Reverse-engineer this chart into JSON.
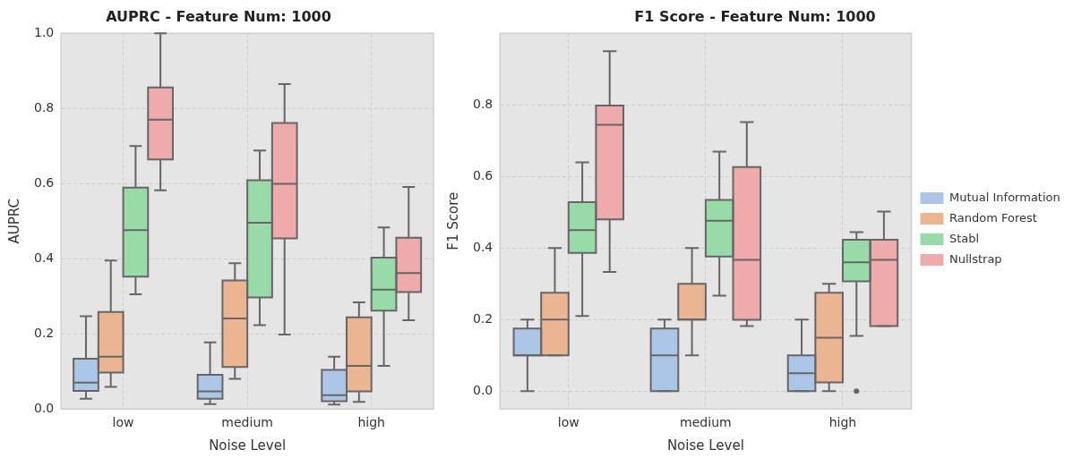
{
  "chart_data": [
    {
      "type": "box",
      "title": "AUPRC - Feature Num: 1000",
      "xlabel": "Noise Level",
      "ylabel": "AUPRC",
      "categories": [
        "low",
        "medium",
        "high"
      ],
      "ylim": [
        0,
        1
      ],
      "yticks": [
        {
          "value": 0,
          "label": "0.0"
        },
        {
          "value": 0.2,
          "label": "0.2"
        },
        {
          "value": 0.4,
          "label": "0.4"
        },
        {
          "value": 0.6,
          "label": "0.6"
        },
        {
          "value": 0.8,
          "label": "0.8"
        },
        {
          "value": 1,
          "label": "1.0"
        }
      ],
      "grid": true,
      "legend": false,
      "series": [
        {
          "color": "#abc6e6",
          "boxes": [
            {
              "low": 0.027,
              "q1": 0.048,
              "median": 0.07,
              "q3": 0.134,
              "high": 0.247
            },
            {
              "low": 0.013,
              "q1": 0.027,
              "median": 0.047,
              "q3": 0.091,
              "high": 0.177
            },
            {
              "low": 0.012,
              "q1": 0.021,
              "median": 0.037,
              "q3": 0.104,
              "high": 0.139
            }
          ]
        },
        {
          "color": "#ecb591",
          "boxes": [
            {
              "low": 0.059,
              "q1": 0.097,
              "median": 0.139,
              "q3": 0.258,
              "high": 0.395
            },
            {
              "low": 0.08,
              "q1": 0.112,
              "median": 0.241,
              "q3": 0.342,
              "high": 0.388
            },
            {
              "low": 0.019,
              "q1": 0.047,
              "median": 0.115,
              "q3": 0.244,
              "high": 0.284
            }
          ]
        },
        {
          "color": "#98dba8",
          "boxes": [
            {
              "low": 0.305,
              "q1": 0.352,
              "median": 0.476,
              "q3": 0.589,
              "high": 0.7
            },
            {
              "low": 0.223,
              "q1": 0.297,
              "median": 0.496,
              "q3": 0.609,
              "high": 0.688
            },
            {
              "low": 0.115,
              "q1": 0.262,
              "median": 0.318,
              "q3": 0.403,
              "high": 0.483
            }
          ]
        },
        {
          "color": "#efabab",
          "boxes": [
            {
              "low": 0.582,
              "q1": 0.664,
              "median": 0.77,
              "q3": 0.856,
              "high": 1.0
            },
            {
              "low": 0.198,
              "q1": 0.454,
              "median": 0.599,
              "q3": 0.761,
              "high": 0.865
            },
            {
              "low": 0.236,
              "q1": 0.311,
              "median": 0.362,
              "q3": 0.456,
              "high": 0.591
            }
          ]
        }
      ]
    },
    {
      "type": "box",
      "title": "F1 Score - Feature Num: 1000",
      "xlabel": "Noise Level",
      "ylabel": "F1 Score",
      "categories": [
        "low",
        "medium",
        "high"
      ],
      "ylim": [
        -0.05,
        1.0
      ],
      "yticks": [
        {
          "value": 0,
          "label": "0.0"
        },
        {
          "value": 0.2,
          "label": "0.2"
        },
        {
          "value": 0.4,
          "label": "0.4"
        },
        {
          "value": 0.6,
          "label": "0.6"
        },
        {
          "value": 0.8,
          "label": "0.8"
        }
      ],
      "grid": true,
      "legend": "right",
      "series": [
        {
          "name": "Mutual Information",
          "color": "#abc6e6",
          "boxes": [
            {
              "low": 0,
              "q1": 0.1,
              "median": 0.1,
              "q3": 0.175,
              "high": 0.2
            },
            {
              "low": 0,
              "q1": 0,
              "median": 0.1,
              "q3": 0.175,
              "high": 0.2
            },
            {
              "low": 0,
              "q1": 0,
              "median": 0.05,
              "q3": 0.1,
              "high": 0.2
            }
          ]
        },
        {
          "name": "Random Forest",
          "color": "#ecb591",
          "boxes": [
            {
              "low": 0.1,
              "q1": 0.1,
              "median": 0.2,
              "q3": 0.275,
              "high": 0.4
            },
            {
              "low": 0.1,
              "q1": 0.2,
              "median": 0.2,
              "q3": 0.3,
              "high": 0.4
            },
            {
              "low": 0,
              "q1": 0.024,
              "median": 0.149,
              "q3": 0.275,
              "high": 0.3
            }
          ]
        },
        {
          "name": "Stabl",
          "color": "#98dba8",
          "boxes": [
            {
              "low": 0.21,
              "q1": 0.386,
              "median": 0.45,
              "q3": 0.528,
              "high": 0.639
            },
            {
              "low": 0.267,
              "q1": 0.376,
              "median": 0.476,
              "q3": 0.534,
              "high": 0.669
            },
            {
              "low": 0.154,
              "q1": 0.307,
              "median": 0.36,
              "q3": 0.423,
              "high": 0.444,
              "outliers": [
                0
              ]
            }
          ]
        },
        {
          "name": "Nullstrap",
          "color": "#efabab",
          "boxes": [
            {
              "low": 0.333,
              "q1": 0.48,
              "median": 0.744,
              "q3": 0.798,
              "high": 0.95
            },
            {
              "low": 0.182,
              "q1": 0.199,
              "median": 0.367,
              "q3": 0.626,
              "high": 0.752
            },
            {
              "low": 0.182,
              "q1": 0.182,
              "median": 0.367,
              "q3": 0.423,
              "high": 0.502
            }
          ]
        }
      ]
    }
  ]
}
